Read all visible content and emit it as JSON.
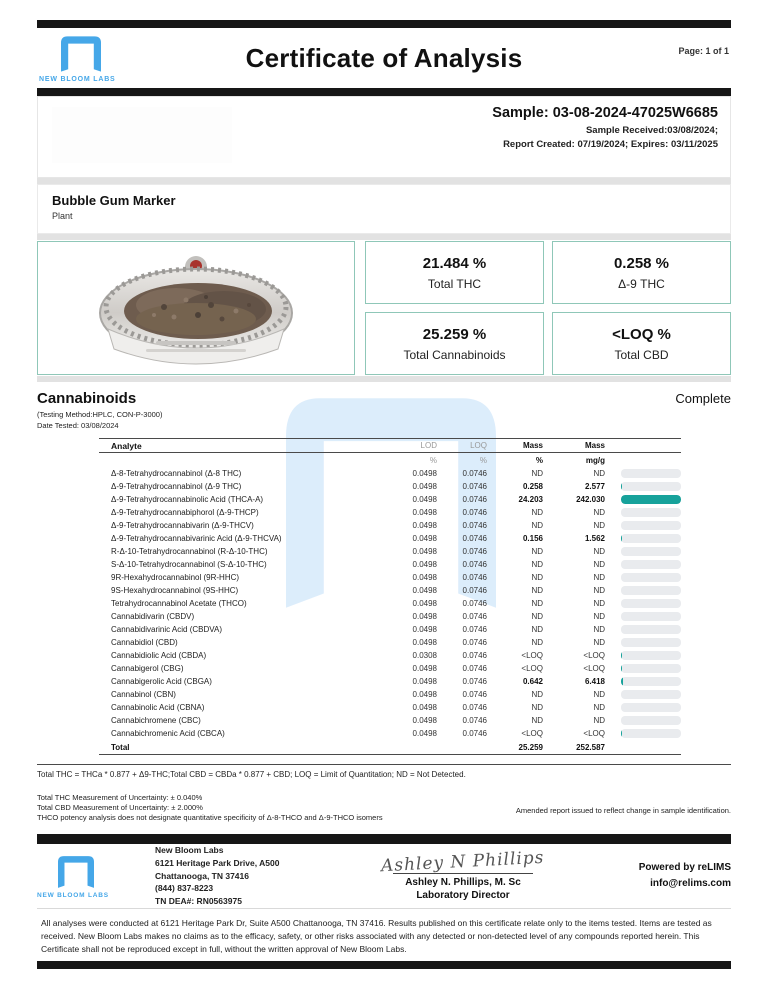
{
  "page": {
    "title": "Certificate of Analysis",
    "page_label": "Page: 1 of 1"
  },
  "brand": {
    "name": "NEW BLOOM LABS",
    "logo_color": "#45a7e8"
  },
  "sample": {
    "id_line": "Sample: 03-08-2024-47025W6685",
    "received_line": "Sample Received:03/08/2024;",
    "report_line": "Report Created: 07/19/2024; Expires: 03/11/2025",
    "name": "Bubble Gum Marker",
    "type": "Plant"
  },
  "results": [
    {
      "value": "21.484 %",
      "label": "Total THC"
    },
    {
      "value": "0.258 %",
      "label": "Δ-9 THC"
    },
    {
      "value": "25.259 %",
      "label": "Total Cannabinoids"
    },
    {
      "value": "<LOQ %",
      "label": "Total CBD"
    }
  ],
  "cannabinoids": {
    "title": "Cannabinoids",
    "status": "Complete",
    "method": "(Testing Method:HPLC, CON-P-3000)",
    "date_tested": "Date Tested: 03/08/2024",
    "columns": {
      "analyte": "Analyte",
      "lod": "LOD",
      "loq": "LOQ",
      "mass_pct": "Mass",
      "mass_mgg": "Mass"
    },
    "units": {
      "lod": "%",
      "loq": "%",
      "mass_pct": "%",
      "mass_mgg": "mg/g"
    },
    "rows": [
      {
        "analyte": "Δ-8-Tetrahydrocannabinol (Δ-8 THC)",
        "lod": "0.0498",
        "loq": "0.0746",
        "mass_pct": "ND",
        "mass_mgg": "ND",
        "bar_pct": 0,
        "detected": false
      },
      {
        "analyte": "Δ-9-Tetrahydrocannabinol (Δ-9 THC)",
        "lod": "0.0498",
        "loq": "0.0746",
        "mass_pct": "0.258",
        "mass_mgg": "2.577",
        "bar_pct": 2,
        "detected": true
      },
      {
        "analyte": "Δ-9-Tetrahydrocannabinolic Acid (THCA-A)",
        "lod": "0.0498",
        "loq": "0.0746",
        "mass_pct": "24.203",
        "mass_mgg": "242.030",
        "bar_pct": 100,
        "detected": true
      },
      {
        "analyte": "Δ-9-Tetrahydrocannabiphorol (Δ-9-THCP)",
        "lod": "0.0498",
        "loq": "0.0746",
        "mass_pct": "ND",
        "mass_mgg": "ND",
        "bar_pct": 0,
        "detected": false
      },
      {
        "analyte": "Δ-9-Tetrahydrocannabivarin (Δ-9-THCV)",
        "lod": "0.0498",
        "loq": "0.0746",
        "mass_pct": "ND",
        "mass_mgg": "ND",
        "bar_pct": 0,
        "detected": false
      },
      {
        "analyte": "Δ-9-Tetrahydrocannabivarinic Acid (Δ-9-THCVA)",
        "lod": "0.0498",
        "loq": "0.0746",
        "mass_pct": "0.156",
        "mass_mgg": "1.562",
        "bar_pct": 1.5,
        "detected": true
      },
      {
        "analyte": "R-Δ-10-Tetrahydrocannabinol (R-Δ-10-THC)",
        "lod": "0.0498",
        "loq": "0.0746",
        "mass_pct": "ND",
        "mass_mgg": "ND",
        "bar_pct": 0,
        "detected": false
      },
      {
        "analyte": "S-Δ-10-Tetrahydrocannabinol (S-Δ-10-THC)",
        "lod": "0.0498",
        "loq": "0.0746",
        "mass_pct": "ND",
        "mass_mgg": "ND",
        "bar_pct": 0,
        "detected": false
      },
      {
        "analyte": "9R-Hexahydrocannabinol (9R-HHC)",
        "lod": "0.0498",
        "loq": "0.0746",
        "mass_pct": "ND",
        "mass_mgg": "ND",
        "bar_pct": 0,
        "detected": false
      },
      {
        "analyte": "9S-Hexahydrocannabinol (9S-HHC)",
        "lod": "0.0498",
        "loq": "0.0746",
        "mass_pct": "ND",
        "mass_mgg": "ND",
        "bar_pct": 0,
        "detected": false
      },
      {
        "analyte": "Tetrahydrocannabinol Acetate (THCO)",
        "lod": "0.0498",
        "loq": "0.0746",
        "mass_pct": "ND",
        "mass_mgg": "ND",
        "bar_pct": 0,
        "detected": false
      },
      {
        "analyte": "Cannabidivarin (CBDV)",
        "lod": "0.0498",
        "loq": "0.0746",
        "mass_pct": "ND",
        "mass_mgg": "ND",
        "bar_pct": 0,
        "detected": false
      },
      {
        "analyte": "Cannabidivarinic Acid (CBDVA)",
        "lod": "0.0498",
        "loq": "0.0746",
        "mass_pct": "ND",
        "mass_mgg": "ND",
        "bar_pct": 0,
        "detected": false
      },
      {
        "analyte": "Cannabidiol (CBD)",
        "lod": "0.0498",
        "loq": "0.0746",
        "mass_pct": "ND",
        "mass_mgg": "ND",
        "bar_pct": 0,
        "detected": false
      },
      {
        "analyte": "Cannabidiolic Acid (CBDA)",
        "lod": "0.0308",
        "loq": "0.0746",
        "mass_pct": "<LOQ",
        "mass_mgg": "<LOQ",
        "bar_pct": 1,
        "detected": false
      },
      {
        "analyte": "Cannabigerol (CBG)",
        "lod": "0.0498",
        "loq": "0.0746",
        "mass_pct": "<LOQ",
        "mass_mgg": "<LOQ",
        "bar_pct": 1,
        "detected": false
      },
      {
        "analyte": "Cannabigerolic Acid (CBGA)",
        "lod": "0.0498",
        "loq": "0.0746",
        "mass_pct": "0.642",
        "mass_mgg": "6.418",
        "bar_pct": 3,
        "detected": true
      },
      {
        "analyte": "Cannabinol (CBN)",
        "lod": "0.0498",
        "loq": "0.0746",
        "mass_pct": "ND",
        "mass_mgg": "ND",
        "bar_pct": 0,
        "detected": false
      },
      {
        "analyte": "Cannabinolic Acid (CBNA)",
        "lod": "0.0498",
        "loq": "0.0746",
        "mass_pct": "ND",
        "mass_mgg": "ND",
        "bar_pct": 0,
        "detected": false
      },
      {
        "analyte": "Cannabichromene (CBC)",
        "lod": "0.0498",
        "loq": "0.0746",
        "mass_pct": "ND",
        "mass_mgg": "ND",
        "bar_pct": 0,
        "detected": false
      },
      {
        "analyte": "Cannabichromenic Acid (CBCA)",
        "lod": "0.0498",
        "loq": "0.0746",
        "mass_pct": "<LOQ",
        "mass_mgg": "<LOQ",
        "bar_pct": 1,
        "detected": false
      }
    ],
    "total": {
      "label": "Total",
      "mass_pct": "25.259",
      "mass_mgg": "252.587"
    }
  },
  "footnotes": {
    "formula": "Total THC = THCa * 0.877 + Δ9-THC;Total CBD = CBDa * 0.877 + CBD; LOQ = Limit of Quantitation; ND = Not Detected.",
    "uncertainty_thc": "Total THC Measurement of Uncertainty: ± 0.040%",
    "uncertainty_cbd": "Total CBD Measurement of Uncertainty: ± 2.000%",
    "thco_note": "THCO potency analysis does not designate quantitative specificity of Δ-8-THCO and Δ-9-THCO isomers",
    "amended": "Amended report issued to reflect change in sample identification."
  },
  "footer": {
    "lab_name": "New Bloom Labs",
    "address1": "6121 Heritage Park Drive, A500",
    "address2": "Chattanooga, TN 37416",
    "phone": "(844) 837-8223",
    "dea": "TN DEA#: RN0563975",
    "signature_script": "Ashley N Phillips",
    "signer": "Ashley N. Phillips, M. Sc",
    "signer_title": "Laboratory Director",
    "powered_by": "Powered by reLIMS",
    "contact_email": "info@relims.com"
  },
  "disclaimer": "All analyses were conducted at 6121 Heritage Park Dr, Suite A500 Chattanooga, TN 37416. Results published on this certificate relate only to the items tested. Items are tested as received. New Bloom Labs makes no claims as to the efficacy, safety, or other risks associated with any detected or non-detected level of any compounds reported herein. This Certificate shall not be reproduced except in full, without the written approval of New Bloom Labs.",
  "colors": {
    "accent_teal": "#17a29b",
    "box_border": "#8fc7b8",
    "logo_blue": "#45a7e8",
    "watermark_blue": "#d7eafb",
    "bar_track": "#e9ebee"
  }
}
